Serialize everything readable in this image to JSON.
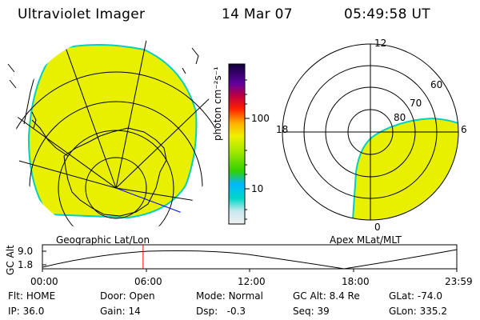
{
  "header": {
    "instrument": "Ultraviolet Imager",
    "date": "14 Mar 07",
    "time": "05:49:58 UT"
  },
  "map_left": {
    "label": "Geographic Lat/Lon"
  },
  "map_right": {
    "label": "Apex  MLat/MLT",
    "mlt_labels": [
      "12",
      "18",
      "6",
      "0"
    ],
    "lat_labels": [
      "60",
      "70",
      "80"
    ]
  },
  "colorbar": {
    "unit": "photon cm⁻²s⁻¹",
    "ticks": [
      "100",
      "10"
    ]
  },
  "timeline": {
    "ylabel": "GC Alt",
    "yticks": [
      "9.0",
      "1.8"
    ],
    "xticks": [
      "00:00",
      "06:00",
      "12:00",
      "18:00",
      "23:59"
    ],
    "cursor_color": "#ff0000",
    "current_fraction": 0.243
  },
  "status": [
    {
      "label": "Flt:",
      "value": "HOME"
    },
    {
      "label": "Door:",
      "value": "Open"
    },
    {
      "label": "Mode:",
      "value": "Normal"
    },
    {
      "label": "GC Alt:",
      "value": "8.4 Re"
    },
    {
      "label": "GLat:",
      "value": "-74.0"
    },
    {
      "label": "IP:",
      "value": "36.0"
    },
    {
      "label": "Gain:",
      "value": "14"
    },
    {
      "label": "Dsp:",
      "value": "  -0.3"
    },
    {
      "label": "Seq:",
      "value": "39"
    },
    {
      "label": "GLon:",
      "value": "335.2"
    }
  ],
  "colors": {
    "image_fill": "#e8f000",
    "image_edge": "#00d0c0"
  }
}
